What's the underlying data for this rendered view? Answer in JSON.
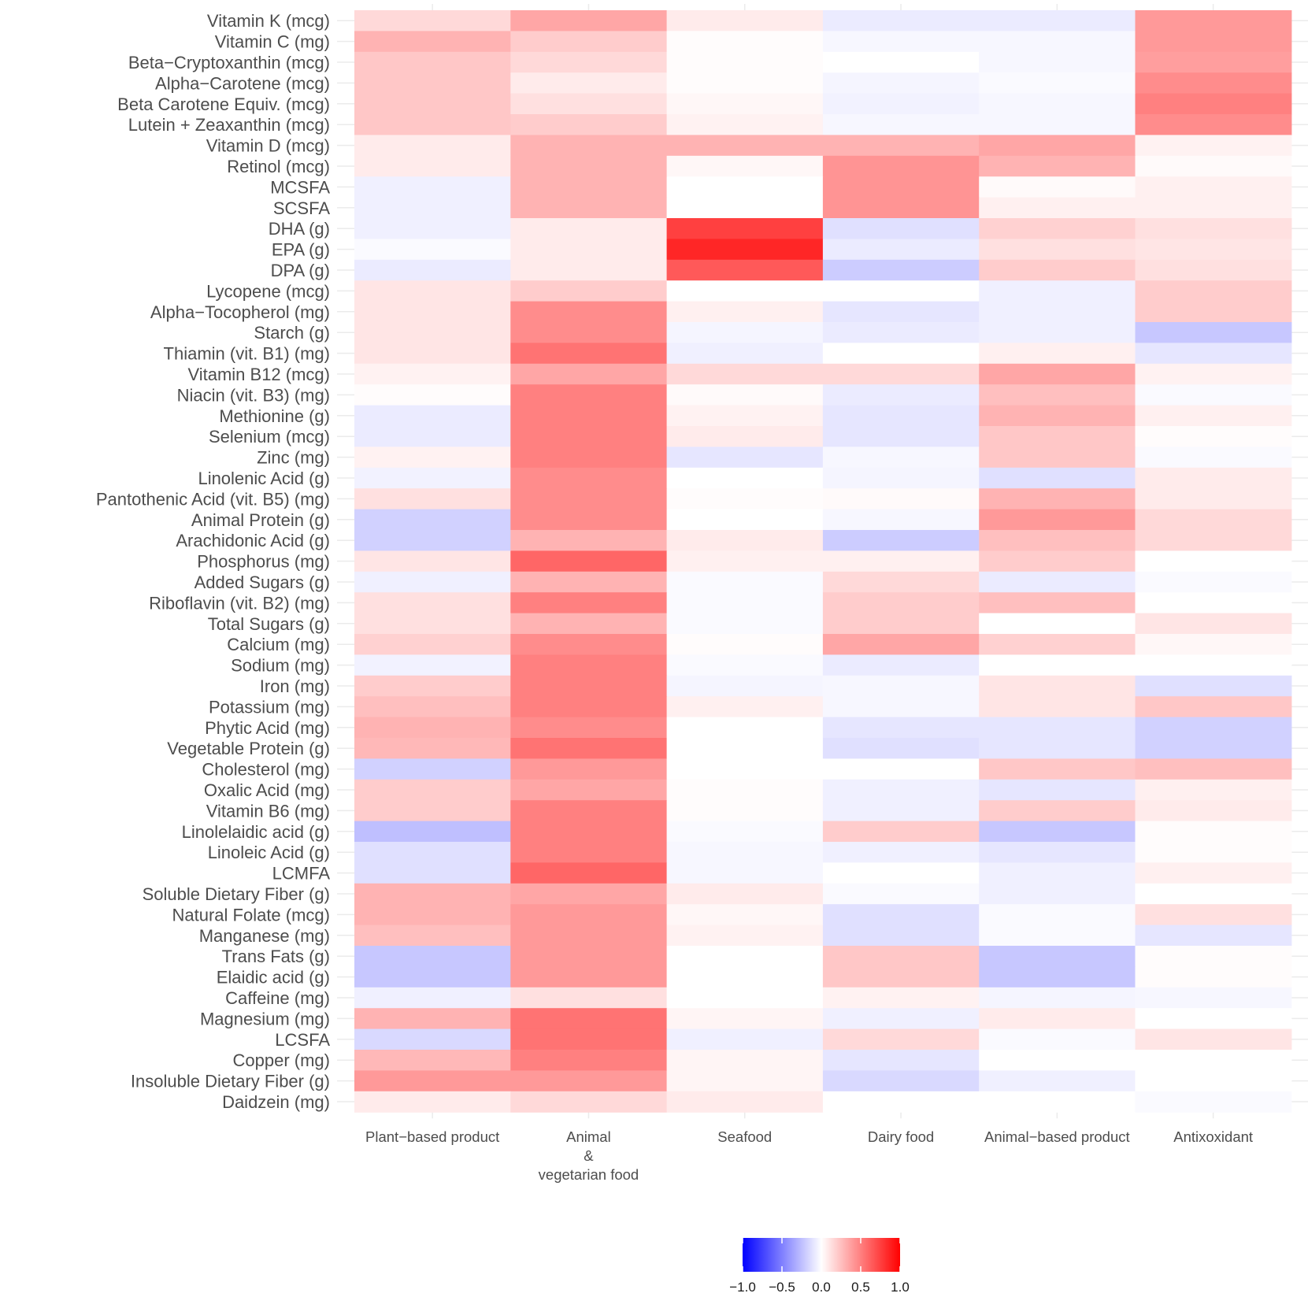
{
  "chart_data": {
    "type": "heatmap",
    "title": "",
    "xlabel": "",
    "ylabel": "",
    "columns": [
      [
        "Plant−based product"
      ],
      [
        "Animal",
        "&",
        "vegetarian food"
      ],
      [
        "Seafood"
      ],
      [
        "Dairy food"
      ],
      [
        "Animal−based product"
      ],
      [
        "Antixoxidant"
      ]
    ],
    "rows": [
      "Vitamin K (mcg)",
      "Vitamin C (mg)",
      "Beta−Cryptoxanthin (mcg)",
      "Alpha−Carotene (mcg)",
      "Beta Carotene Equiv. (mcg)",
      "Lutein + Zeaxanthin (mcg)",
      "Vitamin D (mcg)",
      "Retinol (mcg)",
      "MCSFA",
      "SCSFA",
      "DHA (g)",
      "EPA (g)",
      "DPA (g)",
      "Lycopene (mcg)",
      "Alpha−Tocopherol (mg)",
      "Starch (g)",
      "Thiamin (vit. B1) (mg)",
      "Vitamin B12 (mcg)",
      "Niacin (vit. B3) (mg)",
      "Methionine (g)",
      "Selenium (mcg)",
      "Zinc (mg)",
      "Linolenic Acid (g)",
      "Pantothenic Acid (vit. B5) (mg)",
      "Animal Protein (g)",
      "Arachidonic Acid (g)",
      "Phosphorus (mg)",
      "Added Sugars (g)",
      "Riboflavin (vit. B2) (mg)",
      "Total Sugars (g)",
      "Calcium (mg)",
      "Sodium (mg)",
      "Iron (mg)",
      "Potassium (mg)",
      "Phytic Acid (mg)",
      "Vegetable Protein (g)",
      "Cholesterol (mg)",
      "Oxalic Acid (mg)",
      "Vitamin B6 (mg)",
      "Linolelaidic acid (g)",
      "Linoleic Acid (g)",
      "LCMFA",
      "Soluble Dietary Fiber (g)",
      "Natural Folate (mcg)",
      "Manganese (mg)",
      "Trans Fats (g)",
      "Elaidic acid (g)",
      "Caffeine (mg)",
      "Magnesium (mg)",
      "LCSFA",
      "Copper (mg)",
      "Insoluble Dietary Fiber (g)",
      "Daidzein (mg)"
    ],
    "values": [
      [
        0.15,
        0.35,
        0.08,
        -0.08,
        -0.08,
        0.4
      ],
      [
        0.3,
        0.2,
        0.01,
        -0.03,
        -0.03,
        0.4
      ],
      [
        0.22,
        0.15,
        0.01,
        0.0,
        -0.03,
        0.38
      ],
      [
        0.22,
        0.08,
        0.01,
        -0.04,
        -0.02,
        0.45
      ],
      [
        0.22,
        0.12,
        0.03,
        -0.05,
        -0.03,
        0.5
      ],
      [
        0.22,
        0.2,
        0.05,
        -0.03,
        -0.03,
        0.45
      ],
      [
        0.08,
        0.3,
        0.3,
        0.3,
        0.35,
        0.05
      ],
      [
        0.08,
        0.3,
        0.03,
        0.42,
        0.3,
        0.02
      ],
      [
        -0.06,
        0.3,
        0.0,
        0.42,
        0.02,
        0.06
      ],
      [
        -0.06,
        0.3,
        0.0,
        0.42,
        0.06,
        0.06
      ],
      [
        -0.06,
        0.08,
        0.75,
        -0.12,
        0.18,
        0.12
      ],
      [
        -0.02,
        0.08,
        0.85,
        -0.08,
        0.12,
        0.1
      ],
      [
        -0.08,
        0.08,
        0.65,
        -0.2,
        0.2,
        0.12
      ],
      [
        0.1,
        0.2,
        0.0,
        0.0,
        -0.06,
        0.2
      ],
      [
        0.1,
        0.45,
        0.06,
        -0.1,
        -0.06,
        0.2
      ],
      [
        0.1,
        0.45,
        -0.04,
        -0.08,
        -0.06,
        -0.22
      ],
      [
        0.1,
        0.55,
        -0.06,
        0.0,
        0.06,
        -0.1
      ],
      [
        0.05,
        0.35,
        0.15,
        0.15,
        0.35,
        0.05
      ],
      [
        0.01,
        0.5,
        0.02,
        -0.08,
        0.25,
        -0.02
      ],
      [
        -0.08,
        0.5,
        0.05,
        -0.1,
        0.3,
        0.06
      ],
      [
        -0.08,
        0.5,
        0.08,
        -0.1,
        0.22,
        0.01
      ],
      [
        0.05,
        0.5,
        -0.1,
        -0.03,
        0.22,
        -0.02
      ],
      [
        -0.05,
        0.45,
        0.0,
        -0.04,
        -0.12,
        0.08
      ],
      [
        0.12,
        0.45,
        0.01,
        0.02,
        0.3,
        0.08
      ],
      [
        -0.18,
        0.45,
        0.0,
        -0.03,
        0.4,
        0.15
      ],
      [
        -0.18,
        0.3,
        0.08,
        -0.2,
        0.25,
        0.15
      ],
      [
        0.1,
        0.6,
        0.06,
        0.06,
        0.2,
        0.0
      ],
      [
        -0.06,
        0.3,
        -0.02,
        0.15,
        -0.08,
        -0.02
      ],
      [
        0.12,
        0.5,
        -0.02,
        0.2,
        0.25,
        0.0
      ],
      [
        0.12,
        0.3,
        -0.02,
        0.2,
        0.0,
        0.1
      ],
      [
        0.18,
        0.45,
        0.01,
        0.35,
        0.18,
        0.03
      ],
      [
        -0.05,
        0.5,
        -0.02,
        -0.08,
        0.0,
        0.0
      ],
      [
        0.2,
        0.5,
        -0.04,
        -0.03,
        0.1,
        -0.12
      ],
      [
        0.25,
        0.5,
        0.06,
        -0.03,
        0.1,
        0.22
      ],
      [
        0.3,
        0.45,
        0.0,
        -0.1,
        -0.1,
        -0.18
      ],
      [
        0.28,
        0.55,
        0.0,
        -0.12,
        -0.1,
        -0.18
      ],
      [
        -0.18,
        0.4,
        0.0,
        0.0,
        0.22,
        0.25
      ],
      [
        0.2,
        0.35,
        0.01,
        -0.06,
        -0.1,
        0.06
      ],
      [
        0.2,
        0.5,
        0.01,
        -0.06,
        0.2,
        0.08
      ],
      [
        -0.25,
        0.5,
        -0.02,
        0.2,
        -0.22,
        0.01
      ],
      [
        -0.12,
        0.5,
        -0.03,
        -0.06,
        -0.1,
        0.01
      ],
      [
        -0.12,
        0.6,
        -0.03,
        0.0,
        -0.06,
        0.06
      ],
      [
        0.3,
        0.35,
        0.08,
        -0.02,
        -0.06,
        0.0
      ],
      [
        0.3,
        0.4,
        0.03,
        -0.12,
        -0.02,
        0.12
      ],
      [
        0.25,
        0.4,
        0.05,
        -0.12,
        -0.02,
        -0.1
      ],
      [
        -0.22,
        0.4,
        0.0,
        0.22,
        -0.22,
        0.01
      ],
      [
        -0.22,
        0.4,
        0.0,
        0.22,
        -0.22,
        0.01
      ],
      [
        -0.06,
        0.12,
        0.0,
        0.05,
        -0.04,
        -0.03
      ],
      [
        0.3,
        0.55,
        0.04,
        -0.06,
        0.08,
        0.0
      ],
      [
        -0.15,
        0.55,
        -0.06,
        0.15,
        -0.02,
        0.1
      ],
      [
        0.28,
        0.5,
        0.04,
        -0.1,
        0.0,
        0.0
      ],
      [
        0.4,
        0.4,
        0.04,
        -0.15,
        -0.06,
        0.0
      ],
      [
        0.08,
        0.15,
        0.08,
        0.0,
        0.0,
        -0.02
      ]
    ],
    "legend": {
      "position": "bottom",
      "limits": [
        -1.0,
        1.0
      ],
      "low_color": "#0000ff",
      "mid_color": "#ffffff",
      "high_color": "#ff0000",
      "ticks": [
        -1.0,
        -0.5,
        0.0,
        0.5,
        1.0
      ],
      "tick_labels": [
        "−1.0",
        "−0.5",
        "0.0",
        "0.5",
        "1.0"
      ]
    },
    "grid": true
  }
}
